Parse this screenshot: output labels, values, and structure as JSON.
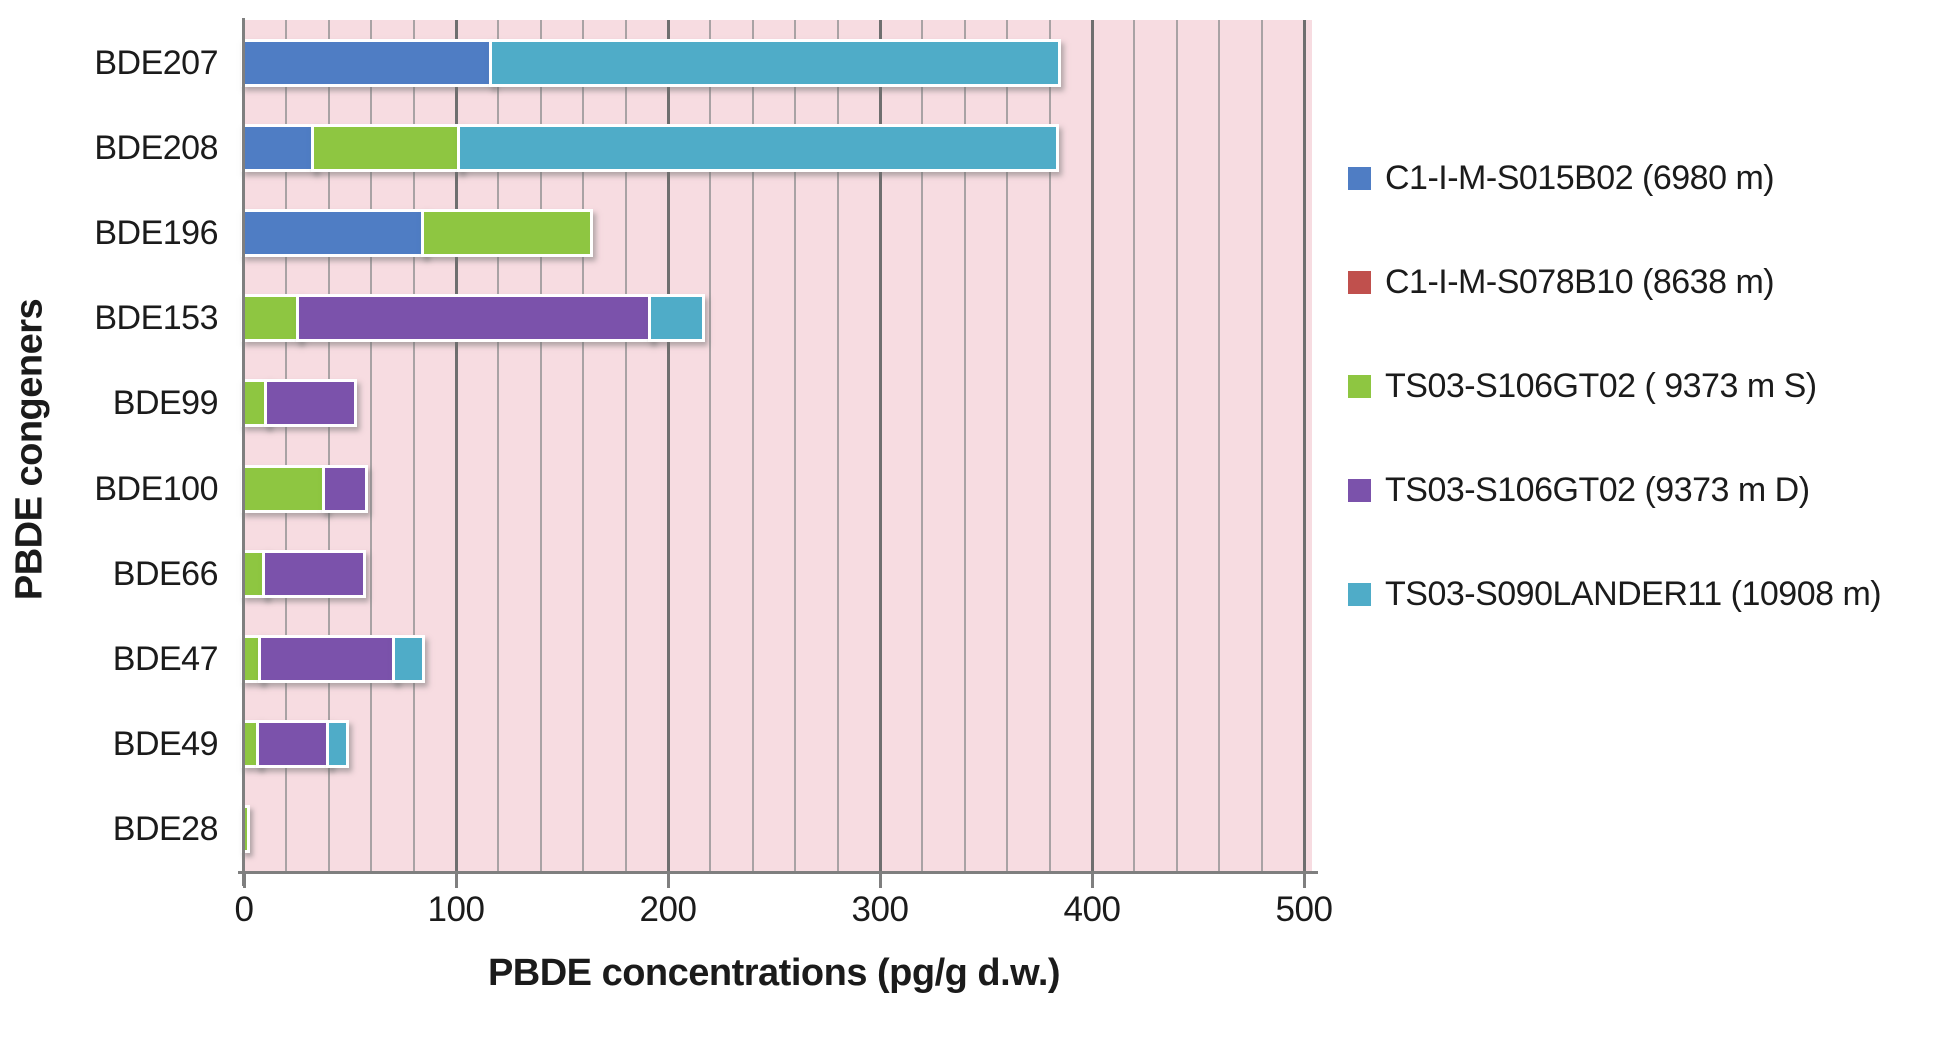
{
  "chart_data": {
    "type": "bar",
    "orientation": "horizontal",
    "stacked": true,
    "xlabel": "PBDE concentrations (pg/g d.w.)",
    "ylabel": "PBDE congeners",
    "xlim": [
      0,
      500
    ],
    "x_ticks": [
      0,
      100,
      200,
      300,
      400,
      500
    ],
    "minor_grid_step": 20,
    "grid": true,
    "legend_position": "right",
    "categories": [
      "BDE207",
      "BDE208",
      "BDE196",
      "BDE153",
      "BDE99",
      "BDE100",
      "BDE66",
      "BDE47",
      "BDE49",
      "BDE28"
    ],
    "series": [
      {
        "name": "C1-I-M-S015B02 (6980 m)",
        "color": "#4F7DC4",
        "values": [
          117,
          33,
          85,
          0,
          0,
          0,
          0,
          0,
          0,
          0
        ]
      },
      {
        "name": "C1-I-M-S078B10 (8638 m)",
        "color": "#C0504D",
        "values": [
          0,
          0,
          0,
          0,
          0,
          0,
          0,
          0,
          0,
          0
        ]
      },
      {
        "name": "TS03-S106GT02 ( 9373 m S)",
        "color": "#8EC641",
        "values": [
          0,
          69,
          78,
          26,
          11,
          38,
          10,
          8,
          7,
          1.5
        ]
      },
      {
        "name": "TS03-S106GT02 (9373 m D)",
        "color": "#7B52AB",
        "values": [
          0,
          0,
          0,
          166,
          41,
          19,
          46,
          63,
          33,
          0
        ]
      },
      {
        "name": "TS03-S090LANDER11 (10908 m)",
        "color": "#4FACC8",
        "values": [
          267,
          281,
          0,
          24,
          0,
          0,
          0,
          13,
          8,
          0
        ]
      }
    ],
    "totals": [
      384,
      383,
      163,
      216,
      52,
      57,
      56,
      84,
      48,
      1.5
    ],
    "colors": {
      "plot_bg": "#F7DCE1",
      "grid_minor": "#A9A2A4",
      "grid_major": "#6F6F6F",
      "axis": "#7F7F7F",
      "text": "#1B1B1B",
      "segment_border": "#FFFFFF"
    }
  }
}
